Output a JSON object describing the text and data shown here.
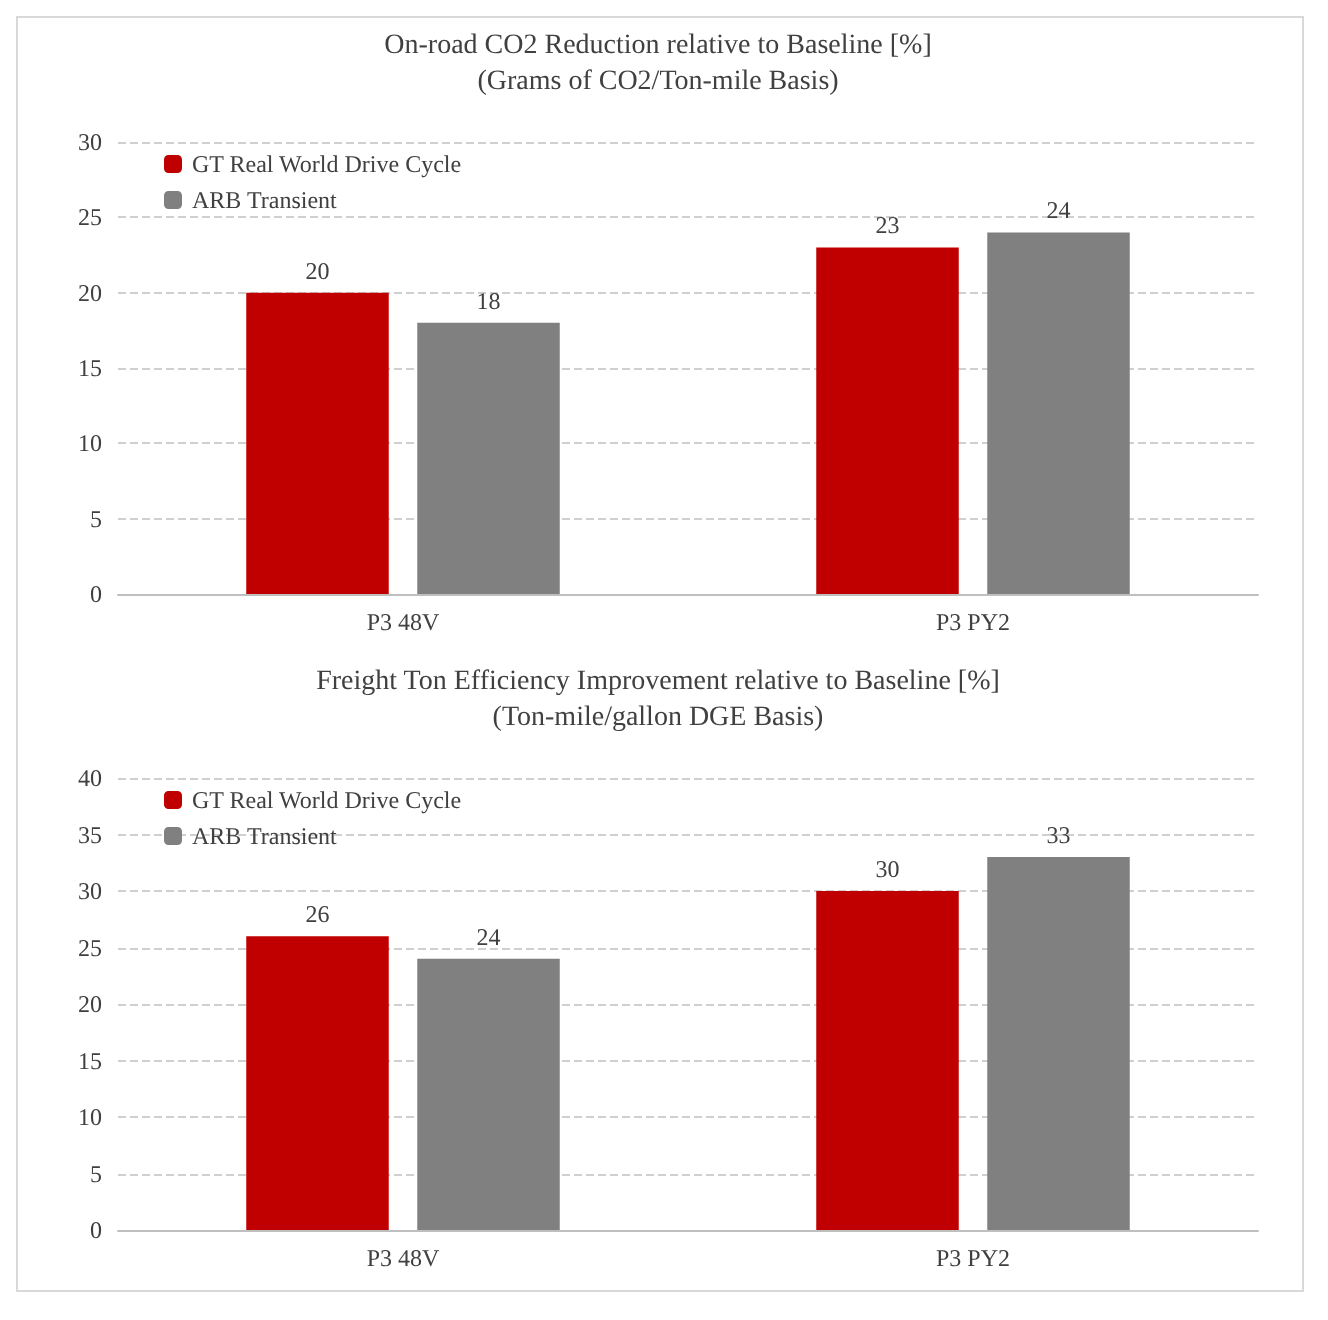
{
  "chart_data": [
    {
      "type": "bar",
      "title": "On-road CO2 Reduction relative to Baseline [%]",
      "subtitle": "(Grams of CO2/Ton-mile Basis)",
      "categories": [
        "P3 48V",
        "P3 PY2"
      ],
      "series": [
        {
          "name": "GT Real World Drive Cycle",
          "color": "#c00000",
          "values": [
            20,
            23
          ]
        },
        {
          "name": "ARB Transient",
          "color": "#808080",
          "values": [
            18,
            24
          ]
        }
      ],
      "ylim": [
        0,
        30
      ],
      "yticks": [
        0,
        5,
        10,
        15,
        20,
        25,
        30
      ],
      "grid": "y",
      "legend": "top left",
      "data_labels": true
    },
    {
      "type": "bar",
      "title": "Freight Ton Efficiency Improvement relative to Baseline [%]",
      "subtitle": "(Ton-mile/gallon DGE Basis)",
      "categories": [
        "P3 48V",
        "P3 PY2"
      ],
      "series": [
        {
          "name": "GT Real World Drive Cycle",
          "color": "#c00000",
          "values": [
            26,
            30
          ]
        },
        {
          "name": "ARB Transient",
          "color": "#808080",
          "values": [
            24,
            33
          ]
        }
      ],
      "ylim": [
        0,
        40
      ],
      "yticks": [
        0,
        5,
        10,
        15,
        20,
        25,
        30,
        35,
        40
      ],
      "grid": "y",
      "legend": "top left",
      "data_labels": true
    }
  ]
}
